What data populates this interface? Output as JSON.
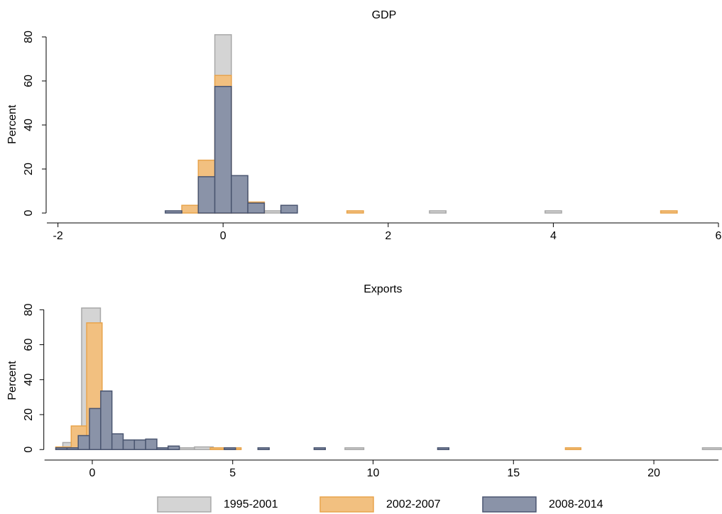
{
  "chart_data": [
    {
      "type": "histogram",
      "title": "GDP",
      "y_label": "Percent",
      "xlim": [
        -2.1,
        6
      ],
      "ylim": [
        -4.5,
        85
      ],
      "xticks": [
        -2,
        0,
        2,
        4,
        6
      ],
      "yticks": [
        0,
        20,
        40,
        60,
        80
      ],
      "series": [
        {
          "name": "1995-2001",
          "color": "#d4d4d4",
          "edge": "#a8a8a8",
          "bins": [
            -0.1,
            0.1,
            0.3,
            0.5,
            0.7,
            0.9,
            1.1,
            1.3,
            1.5,
            1.7,
            1.9,
            2.1,
            2.3,
            2.5,
            2.7,
            2.9,
            3.1,
            3.3,
            3.5,
            3.7,
            3.9,
            4.1
          ],
          "values": [
            81,
            0,
            0,
            1,
            0,
            0,
            0,
            0,
            0,
            0,
            0,
            0,
            0,
            1,
            0,
            0,
            0,
            0,
            0,
            0,
            1
          ]
        },
        {
          "name": "2002-2007",
          "color": "#f2c080",
          "edge": "#e8a44c",
          "bins": [
            -0.5,
            -0.3,
            -0.1,
            0.1,
            0.3,
            0.5,
            0.7,
            0.9,
            1.1,
            1.3,
            1.5,
            1.7,
            1.9,
            2.1,
            2.3,
            2.5,
            2.7,
            2.9,
            3.1,
            3.3,
            3.5,
            3.7,
            3.9,
            4.1,
            4.3,
            4.5,
            4.7,
            4.9,
            5.1,
            5.3,
            5.5
          ],
          "values": [
            3.5,
            24,
            62.5,
            10,
            5,
            0,
            0,
            0,
            0,
            0,
            1,
            0,
            0,
            0,
            0,
            0,
            0,
            0,
            0,
            0,
            0,
            0,
            0,
            0,
            0,
            0,
            0,
            0,
            0,
            1
          ]
        },
        {
          "name": "2008-2014",
          "color": "#8a93a8",
          "edge": "#4a5570",
          "bins": [
            -0.7,
            -0.5,
            -0.3,
            -0.1,
            0.1,
            0.3,
            0.5,
            0.7,
            0.9
          ],
          "values": [
            1,
            0,
            16.5,
            57.5,
            17,
            4.5,
            0,
            3.5
          ]
        }
      ]
    },
    {
      "type": "histogram",
      "title": "Exports",
      "y_label": "Percent",
      "xlim": [
        -1.6,
        22.3
      ],
      "ylim": [
        -6,
        85
      ],
      "xticks": [
        0,
        5,
        10,
        15,
        20
      ],
      "yticks": [
        0,
        20,
        40,
        60,
        80
      ],
      "series": [
        {
          "name": "1995-2001",
          "color": "#d4d4d4",
          "edge": "#a8a8a8",
          "bins": [
            -1.05,
            -0.38,
            0.29,
            0.96,
            1.63,
            2.3,
            2.97,
            3.64,
            4.31,
            4.98,
            5.65,
            6.32,
            6.99,
            7.66,
            8.33,
            9.0,
            9.67,
            10.34,
            11.01,
            11.68,
            12.35,
            13.02,
            13.69,
            14.36,
            15.03,
            15.7,
            16.37,
            17.04,
            17.71,
            18.38,
            19.05,
            19.72,
            20.39,
            21.06,
            21.73,
            22.4
          ],
          "values": [
            4,
            81,
            0,
            0,
            0,
            0,
            1,
            1.5,
            0,
            0,
            0,
            0,
            0,
            0,
            0,
            1,
            0,
            0,
            0,
            0,
            0,
            0,
            0,
            0,
            0,
            0,
            0,
            0,
            0,
            0,
            0,
            0,
            0,
            0,
            1
          ]
        },
        {
          "name": "2002-2007",
          "color": "#f2c080",
          "edge": "#e8a44c",
          "bins": [
            -1.3,
            -0.75,
            -0.2,
            0.35,
            0.9,
            1.45,
            2.0,
            2.55,
            3.1,
            3.65,
            4.2,
            4.75,
            5.3,
            5.85,
            6.4,
            6.95,
            7.5,
            8.05,
            8.6,
            9.15,
            9.7,
            10.25,
            10.8,
            11.35,
            11.9,
            12.45,
            13.0,
            13.55,
            14.1,
            14.65,
            15.2,
            15.75,
            16.3,
            16.85,
            17.4
          ],
          "values": [
            1.5,
            13.5,
            72.5,
            5,
            2,
            0,
            0,
            0,
            0,
            0,
            1,
            1,
            0,
            0,
            0,
            0,
            0,
            0,
            0,
            0,
            0,
            0,
            0,
            0,
            0,
            0,
            0,
            0,
            0,
            0,
            0,
            0,
            0,
            1
          ]
        },
        {
          "name": "2008-2014",
          "color": "#8a93a8",
          "edge": "#4a5570",
          "bins": [
            -1.3,
            -0.9,
            -0.5,
            -0.1,
            0.3,
            0.7,
            1.1,
            1.5,
            1.9,
            2.3,
            2.7,
            3.1,
            3.5,
            3.9,
            4.3,
            4.7,
            5.1,
            5.5,
            5.9,
            6.3,
            6.7,
            7.1,
            7.5,
            7.9,
            8.3,
            8.7,
            9.1,
            9.5,
            9.9,
            10.3,
            10.7,
            11.1,
            11.5,
            11.9,
            12.3,
            12.7
          ],
          "values": [
            1,
            1,
            8,
            23.5,
            33.5,
            9,
            5.5,
            5.5,
            6,
            1,
            2,
            0,
            0,
            0,
            0,
            1,
            0,
            0,
            1,
            0,
            0,
            0,
            0,
            1,
            0,
            0,
            0,
            0,
            0,
            0,
            0,
            0,
            0,
            0,
            1
          ]
        }
      ]
    }
  ]
}
